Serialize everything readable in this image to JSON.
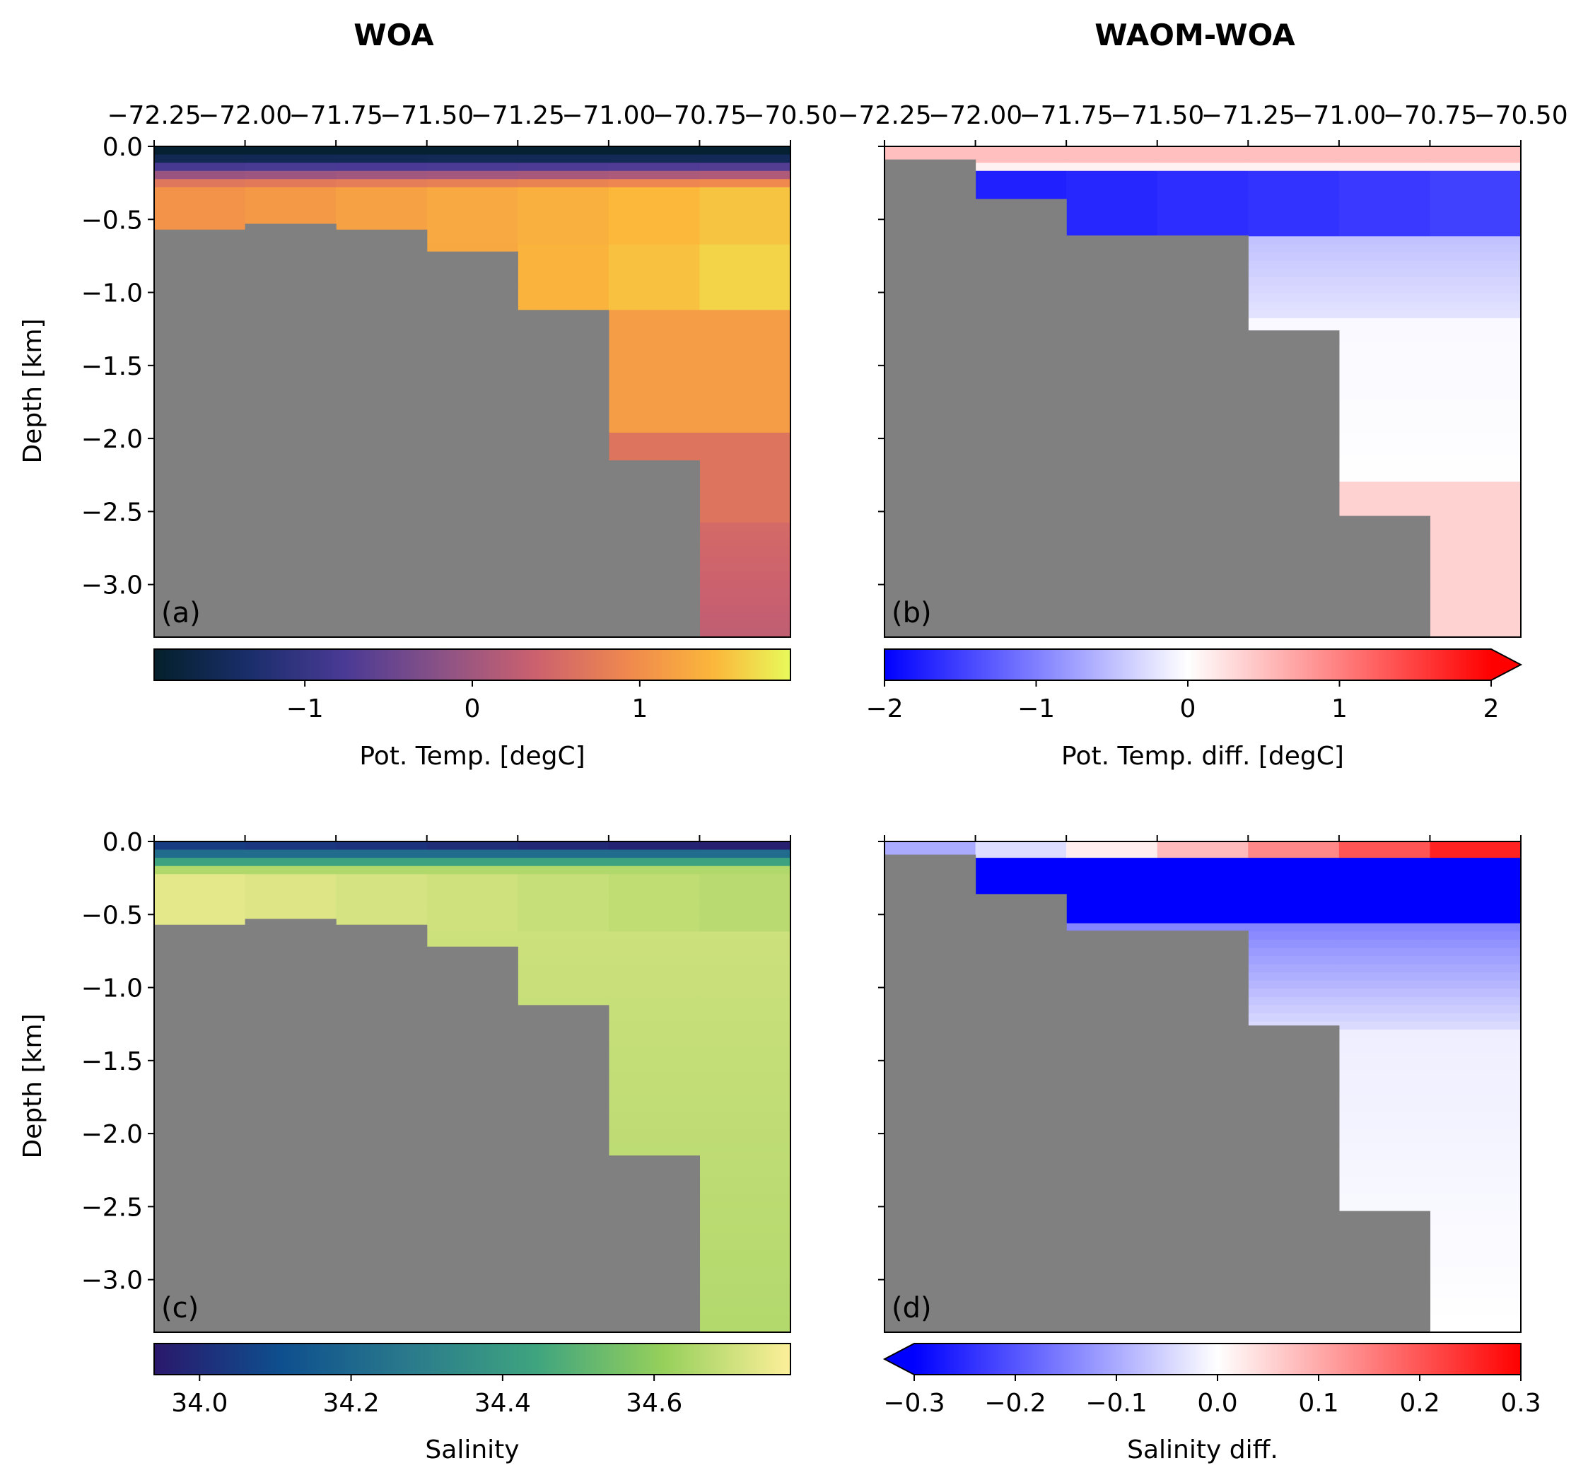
{
  "column_titles": [
    "WOA",
    "WAOM-WOA"
  ],
  "top_xtick_labels": [
    "−72.25",
    "−72.00",
    "−71.75",
    "−71.50",
    "−71.25",
    "−71.00",
    "−70.75",
    "−70.50"
  ],
  "y_axis_label": "Depth [km]",
  "y_tick_labels": [
    "0.0",
    "−0.5",
    "−1.0",
    "−1.5",
    "−2.0",
    "−2.5",
    "−3.0"
  ],
  "chart_data": [
    {
      "type": "heatmap",
      "panel_label": "(a)",
      "x_axis": "longitude",
      "x_ticks": [
        -72.25,
        -72.0,
        -71.75,
        -71.5,
        -71.25,
        -71.0,
        -70.75,
        -70.5
      ],
      "xlim": [
        -72.25,
        -70.5
      ],
      "ylabel": "Depth [km]",
      "y_ticks": [
        0.0,
        -0.5,
        -1.0,
        -1.5,
        -2.0,
        -2.5,
        -3.0
      ],
      "ylim": [
        -3.36,
        0.0
      ],
      "land_color": "#808080",
      "bottom_depth_km": [
        -0.57,
        -0.53,
        -0.57,
        -0.72,
        -1.12,
        -2.15,
        -3.36
      ],
      "colorbar": {
        "label": "Pot. Temp. [degC]",
        "colormap": "thermal",
        "range": [
          -1.9,
          1.9
        ],
        "ticks": [
          -1,
          0,
          1
        ],
        "tick_labels": [
          "−1",
          "0",
          "1"
        ],
        "extend": "neither"
      }
    },
    {
      "type": "heatmap",
      "panel_label": "(b)",
      "x_axis": "longitude",
      "x_ticks": [
        -72.25,
        -72.0,
        -71.75,
        -71.5,
        -71.25,
        -71.0,
        -70.75,
        -70.5
      ],
      "xlim": [
        -72.25,
        -70.5
      ],
      "ylim": [
        -3.36,
        0.0
      ],
      "land_color": "#808080",
      "bottom_depth_km": [
        -0.09,
        -0.36,
        -0.61,
        -0.61,
        -1.26,
        -2.53,
        -3.36
      ],
      "colorbar": {
        "label": "Pot. Temp. diff. [degC]",
        "colormap": "bwr",
        "range": [
          -2,
          2
        ],
        "ticks": [
          -2,
          -1,
          0,
          1,
          2
        ],
        "tick_labels": [
          "−2",
          "−1",
          "0",
          "1",
          "2"
        ],
        "extend": "max"
      }
    },
    {
      "type": "heatmap",
      "panel_label": "(c)",
      "x_axis": "longitude",
      "xlim": [
        -72.25,
        -70.5
      ],
      "ylabel": "Depth [km]",
      "y_ticks": [
        0.0,
        -0.5,
        -1.0,
        -1.5,
        -2.0,
        -2.5,
        -3.0
      ],
      "ylim": [
        -3.36,
        0.0
      ],
      "land_color": "#808080",
      "bottom_depth_km": [
        -0.57,
        -0.53,
        -0.57,
        -0.72,
        -1.12,
        -2.15,
        -3.36
      ],
      "colorbar": {
        "label": "Salinity",
        "colormap": "haline",
        "range": [
          33.94,
          34.78
        ],
        "ticks": [
          34.0,
          34.2,
          34.4,
          34.6
        ],
        "tick_labels": [
          "34.0",
          "34.2",
          "34.4",
          "34.6"
        ],
        "extend": "neither"
      }
    },
    {
      "type": "heatmap",
      "panel_label": "(d)",
      "x_axis": "longitude",
      "xlim": [
        -72.25,
        -70.5
      ],
      "ylim": [
        -3.36,
        0.0
      ],
      "land_color": "#808080",
      "bottom_depth_km": [
        -0.09,
        -0.36,
        -0.61,
        -0.61,
        -1.26,
        -2.53,
        -3.36
      ],
      "colorbar": {
        "label": "Salinity diff.",
        "colormap": "bwr",
        "range": [
          -0.3,
          0.3
        ],
        "ticks": [
          -0.3,
          -0.2,
          -0.1,
          0.0,
          0.1,
          0.2,
          0.3
        ],
        "tick_labels": [
          "−0.3",
          "−0.2",
          "−0.1",
          "0.0",
          "0.1",
          "0.2",
          "0.3"
        ],
        "extend": "min"
      }
    }
  ]
}
